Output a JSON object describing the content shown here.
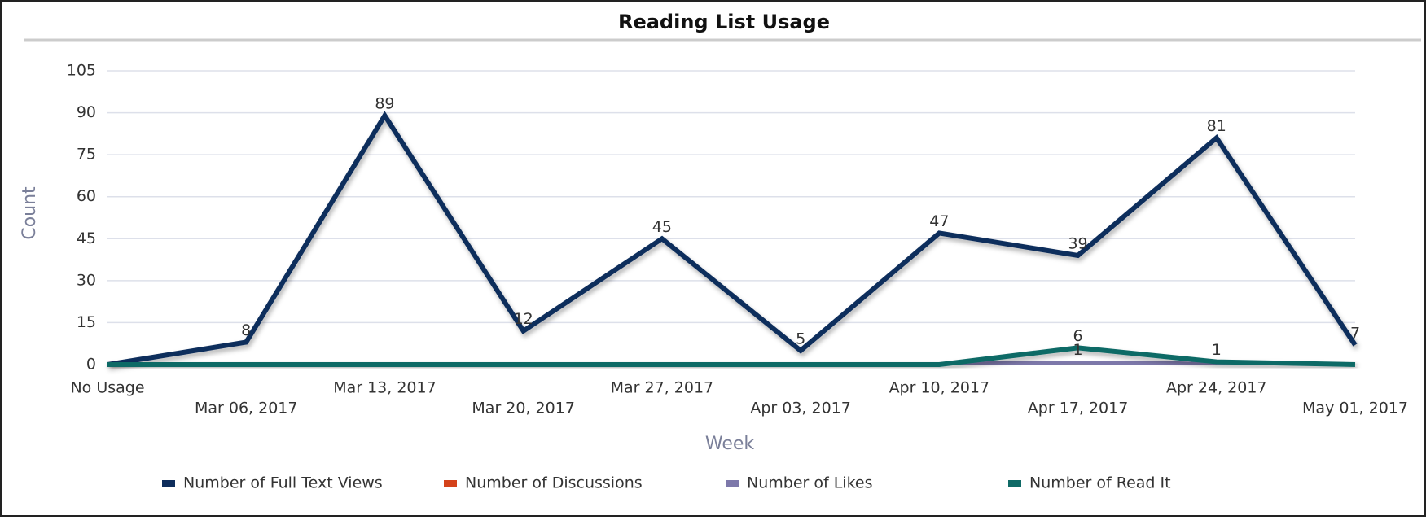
{
  "chart_data": {
    "type": "line",
    "title": "Reading List Usage",
    "x_label": "Week",
    "y_label": "Count",
    "categories": [
      "No Usage",
      "Mar 06, 2017",
      "Mar 13, 2017",
      "Mar 20, 2017",
      "Mar 27, 2017",
      "Apr 03, 2017",
      "Apr 10, 2017",
      "Apr 17, 2017",
      "Apr 24, 2017",
      "May 01, 2017"
    ],
    "series": [
      {
        "name": "Number of Full Text Views",
        "color": "#0e2d5c",
        "values": [
          0,
          8,
          89,
          12,
          45,
          5,
          47,
          39,
          81,
          7
        ]
      },
      {
        "name": "Number of Discussions",
        "color": "#d4421a",
        "values": [
          0,
          0,
          0,
          0,
          0,
          0,
          0,
          0,
          0,
          0
        ]
      },
      {
        "name": "Number of Likes",
        "color": "#7d78aa",
        "values": [
          0,
          0,
          0,
          0,
          0,
          0,
          0,
          1,
          0,
          0
        ]
      },
      {
        "name": "Number of Read It",
        "color": "#0f6a66",
        "values": [
          0,
          0,
          0,
          0,
          0,
          0,
          0,
          6,
          1,
          0
        ]
      }
    ],
    "ylim": [
      0,
      105
    ],
    "yticks": [
      0,
      15,
      30,
      45,
      60,
      75,
      90,
      105
    ],
    "grid": true,
    "legend": "bottom"
  }
}
